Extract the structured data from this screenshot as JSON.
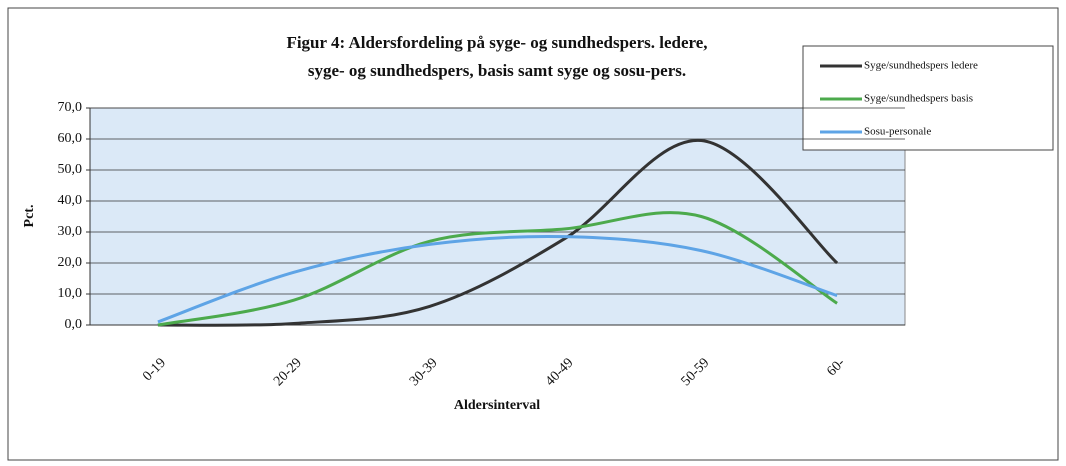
{
  "chart_data": {
    "type": "line",
    "title": [
      "Figur 4: Aldersfordeling på syge- og sundhedspers. ledere,",
      "syge- og sundhedspers, basis samt syge og sosu-pers."
    ],
    "x_label": "Aldersinterval",
    "y_label": "Pct.",
    "categories": [
      "0-19",
      "20-29",
      "30-39",
      "40-49",
      "50-59",
      "60-"
    ],
    "series": [
      {
        "name": "Syge/sundhedspers ledere",
        "color": "#333333",
        "values": [
          0,
          0.5,
          6,
          28,
          59.5,
          20
        ]
      },
      {
        "name": "Syge/sundhedspers basis",
        "color": "#4caa4c",
        "values": [
          0,
          8,
          27,
          31,
          35,
          7
        ]
      },
      {
        "name": "Sosu-personale",
        "color": "#5ea4e6",
        "values": [
          1,
          17,
          26,
          28.5,
          24,
          9.5
        ]
      }
    ],
    "ylim": [
      0,
      70
    ],
    "yticks": [
      {
        "value": 0,
        "label": "0,0"
      },
      {
        "value": 10,
        "label": "10,0"
      },
      {
        "value": 20,
        "label": "20,0"
      },
      {
        "value": 30,
        "label": "30,0"
      },
      {
        "value": 40,
        "label": "40,0"
      },
      {
        "value": 50,
        "label": "50,0"
      },
      {
        "value": 60,
        "label": "60,0"
      },
      {
        "value": 70,
        "label": "70,0"
      }
    ],
    "grid": true,
    "legend": "top-right"
  }
}
